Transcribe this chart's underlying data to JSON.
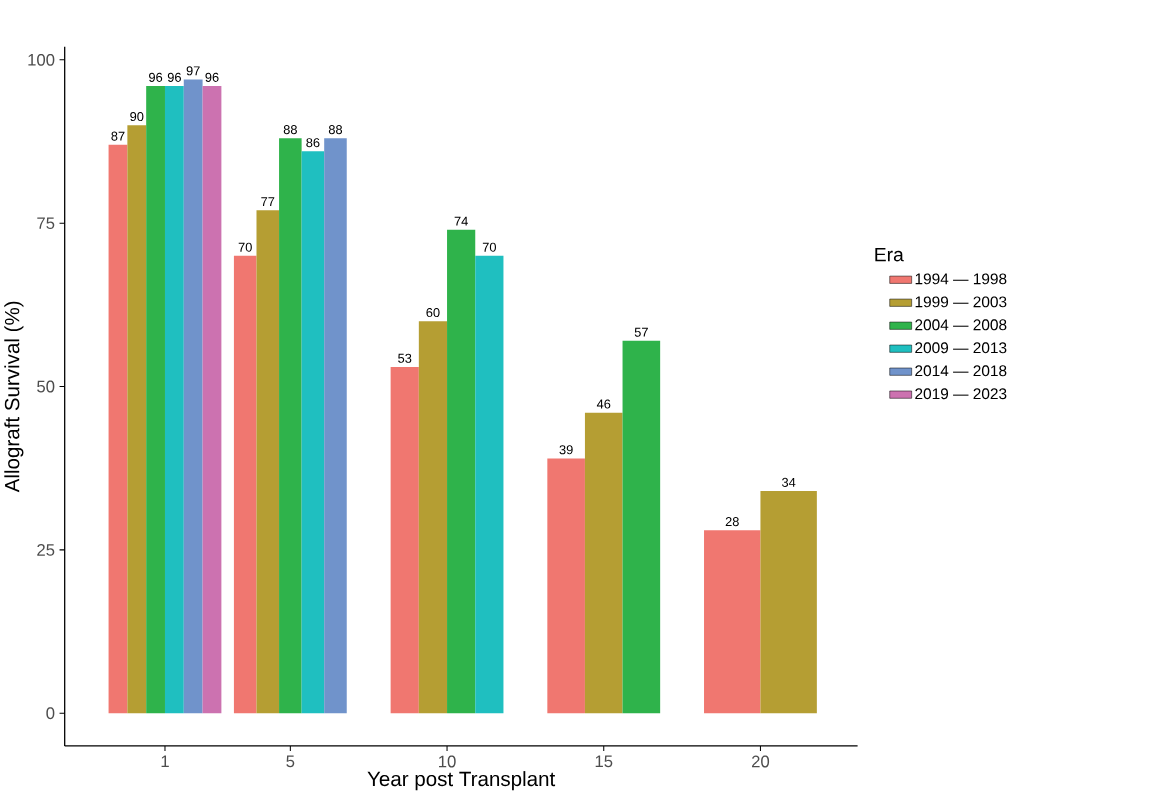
{
  "chart_data": {
    "type": "bar",
    "xlabel": "Year post Transplant",
    "ylabel": "Allograft Survival (%)",
    "legend_title": "Era",
    "x": [
      1,
      5,
      10,
      15,
      20
    ],
    "xlim": [
      -2.2,
      23.1
    ],
    "ylim": [
      -5,
      102
    ],
    "xticks": [
      1,
      5,
      10,
      15,
      20
    ],
    "yticks": [
      0,
      25,
      50,
      75,
      100
    ],
    "series": [
      {
        "name": "1994 — 1998",
        "color": "#f07770",
        "values": [
          87,
          70,
          53,
          39,
          28
        ]
      },
      {
        "name": "1999 — 2003",
        "color": "#b59e33",
        "values": [
          90,
          77,
          60,
          46,
          34
        ]
      },
      {
        "name": "2004 — 2008",
        "color": "#2fb34b",
        "values": [
          96,
          88,
          74,
          57,
          null
        ]
      },
      {
        "name": "2009 — 2013",
        "color": "#1fbfc0",
        "values": [
          96,
          86,
          70,
          null,
          null
        ]
      },
      {
        "name": "2014 — 2018",
        "color": "#7093cb",
        "values": [
          97,
          88,
          null,
          null,
          null
        ]
      },
      {
        "name": "2019 — 2023",
        "color": "#cc72b0",
        "values": [
          96,
          null,
          null,
          null,
          null
        ]
      }
    ],
    "data_labels": true,
    "legend": "right",
    "grid": false
  }
}
